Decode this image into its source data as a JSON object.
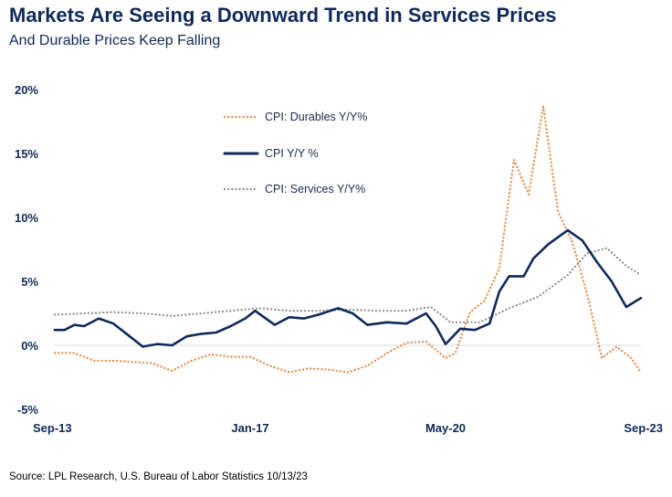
{
  "title": "Markets Are Seeing a Downward Trend in Services Prices",
  "subtitle": "And Durable Prices Keep Falling",
  "source": "Source: LPL Research, U.S. Bureau of Labor Statistics 10/13/23",
  "colors": {
    "durables": "#e9823a",
    "cpi": "#0f2a5a",
    "services": "#8c8c8c",
    "zero_line": "#d9d9d9",
    "text": "#0f2a5a"
  },
  "chart_data": {
    "type": "line",
    "title": "Markets Are Seeing a Downward Trend in Services Prices",
    "subtitle": "And Durable Prices Keep Falling",
    "xlabel": "",
    "ylabel": "",
    "ylim": [
      -5,
      20
    ],
    "xlim": [
      "2013-09",
      "2023-09"
    ],
    "y_ticks": [
      "20%",
      "15%",
      "10%",
      "5%",
      "0%",
      "-5%"
    ],
    "y_tick_values": [
      20,
      15,
      10,
      5,
      0,
      -5
    ],
    "x_ticks": [
      "Sep-13",
      "Jan-17",
      "May-20",
      "Sep-23"
    ],
    "x_tick_dates": [
      "2013-09",
      "2017-01",
      "2020-05",
      "2023-09"
    ],
    "legend_position": "top-center",
    "grid": false,
    "series": [
      {
        "name": "CPI: Durables Y/Y%",
        "style": "dotted",
        "points": [
          [
            "2013-09",
            -0.6
          ],
          [
            "2014-01",
            -0.6
          ],
          [
            "2014-05",
            -1.2
          ],
          [
            "2014-09",
            -1.2
          ],
          [
            "2015-01",
            -1.3
          ],
          [
            "2015-05",
            -1.4
          ],
          [
            "2015-09",
            -2.0
          ],
          [
            "2016-01",
            -1.2
          ],
          [
            "2016-05",
            -0.7
          ],
          [
            "2016-09",
            -0.9
          ],
          [
            "2017-01",
            -0.9
          ],
          [
            "2017-05",
            -1.6
          ],
          [
            "2017-09",
            -2.1
          ],
          [
            "2018-01",
            -1.8
          ],
          [
            "2018-05",
            -1.9
          ],
          [
            "2018-09",
            -2.1
          ],
          [
            "2019-01",
            -1.6
          ],
          [
            "2019-05",
            -0.6
          ],
          [
            "2019-09",
            0.2
          ],
          [
            "2020-01",
            0.3
          ],
          [
            "2020-05",
            -1.0
          ],
          [
            "2020-07",
            -0.6
          ],
          [
            "2020-10",
            2.6
          ],
          [
            "2021-01",
            3.5
          ],
          [
            "2021-04",
            6.0
          ],
          [
            "2021-07",
            14.5
          ],
          [
            "2021-10",
            11.8
          ],
          [
            "2022-01",
            18.7
          ],
          [
            "2022-04",
            10.5
          ],
          [
            "2022-07",
            8.0
          ],
          [
            "2022-10",
            4.0
          ],
          [
            "2023-01",
            -1.0
          ],
          [
            "2023-04",
            -0.1
          ],
          [
            "2023-07",
            -1.0
          ],
          [
            "2023-09",
            -2.1
          ]
        ]
      },
      {
        "name": "CPI Y/Y %",
        "style": "solid",
        "points": [
          [
            "2013-09",
            1.2
          ],
          [
            "2013-11",
            1.2
          ],
          [
            "2014-01",
            1.6
          ],
          [
            "2014-03",
            1.5
          ],
          [
            "2014-06",
            2.1
          ],
          [
            "2014-09",
            1.7
          ],
          [
            "2014-12",
            0.8
          ],
          [
            "2015-03",
            -0.1
          ],
          [
            "2015-06",
            0.1
          ],
          [
            "2015-09",
            0.0
          ],
          [
            "2015-12",
            0.7
          ],
          [
            "2016-03",
            0.9
          ],
          [
            "2016-06",
            1.0
          ],
          [
            "2016-09",
            1.5
          ],
          [
            "2016-12",
            2.1
          ],
          [
            "2017-02",
            2.7
          ],
          [
            "2017-06",
            1.6
          ],
          [
            "2017-09",
            2.2
          ],
          [
            "2017-12",
            2.1
          ],
          [
            "2018-03",
            2.4
          ],
          [
            "2018-07",
            2.9
          ],
          [
            "2018-10",
            2.5
          ],
          [
            "2019-01",
            1.6
          ],
          [
            "2019-05",
            1.8
          ],
          [
            "2019-09",
            1.7
          ],
          [
            "2020-01",
            2.5
          ],
          [
            "2020-03",
            1.5
          ],
          [
            "2020-05",
            0.1
          ],
          [
            "2020-08",
            1.3
          ],
          [
            "2020-11",
            1.2
          ],
          [
            "2021-02",
            1.7
          ],
          [
            "2021-04",
            4.2
          ],
          [
            "2021-06",
            5.4
          ],
          [
            "2021-09",
            5.4
          ],
          [
            "2021-11",
            6.8
          ],
          [
            "2022-02",
            7.9
          ],
          [
            "2022-06",
            9.0
          ],
          [
            "2022-09",
            8.2
          ],
          [
            "2022-12",
            6.5
          ],
          [
            "2023-03",
            5.0
          ],
          [
            "2023-06",
            3.0
          ],
          [
            "2023-09",
            3.7
          ]
        ]
      },
      {
        "name": "CPI: Services Y/Y%",
        "style": "dotted",
        "points": [
          [
            "2013-09",
            2.4
          ],
          [
            "2014-03",
            2.5
          ],
          [
            "2014-09",
            2.6
          ],
          [
            "2015-03",
            2.5
          ],
          [
            "2015-09",
            2.3
          ],
          [
            "2016-03",
            2.5
          ],
          [
            "2016-09",
            2.7
          ],
          [
            "2017-03",
            2.9
          ],
          [
            "2017-09",
            2.7
          ],
          [
            "2018-03",
            2.7
          ],
          [
            "2018-09",
            2.8
          ],
          [
            "2019-03",
            2.7
          ],
          [
            "2019-09",
            2.7
          ],
          [
            "2020-02",
            3.0
          ],
          [
            "2020-06",
            1.8
          ],
          [
            "2020-12",
            1.8
          ],
          [
            "2021-06",
            2.9
          ],
          [
            "2021-12",
            3.8
          ],
          [
            "2022-06",
            5.5
          ],
          [
            "2022-10",
            7.2
          ],
          [
            "2023-02",
            7.6
          ],
          [
            "2023-06",
            6.2
          ],
          [
            "2023-09",
            5.5
          ]
        ]
      }
    ]
  }
}
